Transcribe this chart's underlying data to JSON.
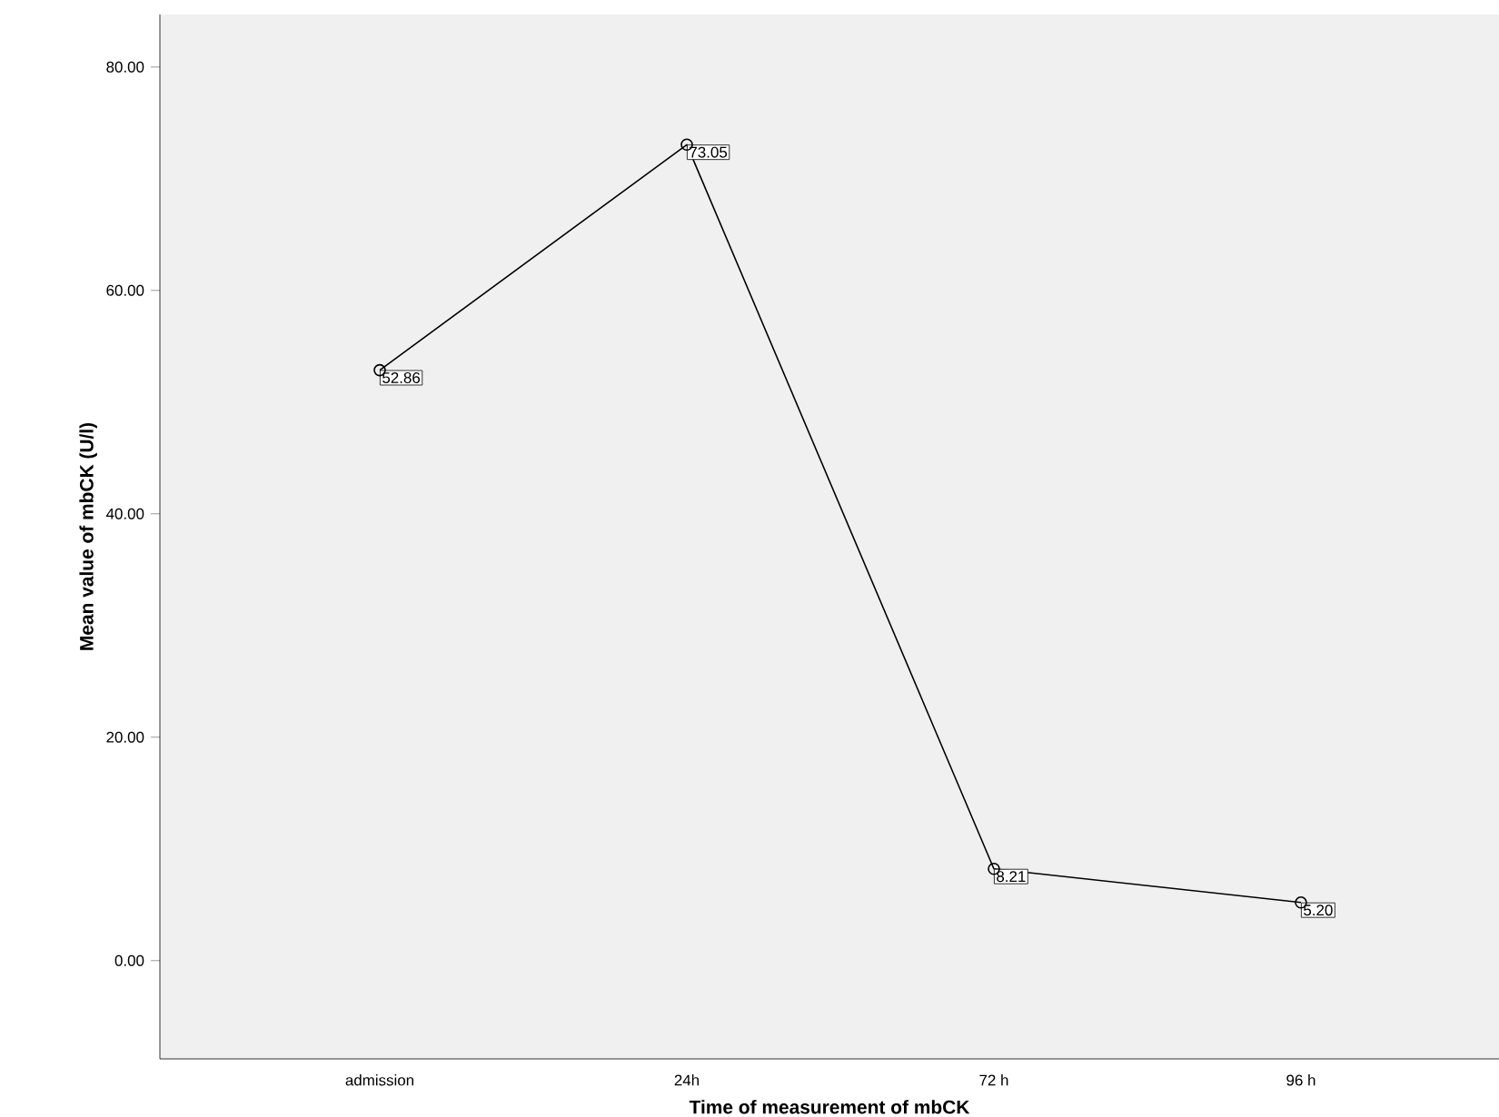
{
  "chart_data": {
    "type": "line",
    "xlabel": "Time of measurement of mbCK",
    "ylabel": "Mean value of mbCK (U/l)",
    "categories": [
      "admission",
      "24h",
      "72 h",
      "96 h"
    ],
    "values": [
      52.86,
      73.05,
      8.21,
      5.2
    ],
    "value_labels": [
      "52.86",
      "73.05",
      "8.21",
      "5.20"
    ],
    "color": "#000000",
    "marker": "circle",
    "line_style": "solid",
    "grid": false,
    "ylim": [
      -8.8,
      84.7
    ],
    "yticks": [
      {
        "value": 0,
        "label": "0.00"
      },
      {
        "value": 20,
        "label": "20.00"
      },
      {
        "value": 40,
        "label": "40.00"
      },
      {
        "value": 60,
        "label": "60.00"
      },
      {
        "value": 80,
        "label": "80.00"
      }
    ]
  }
}
